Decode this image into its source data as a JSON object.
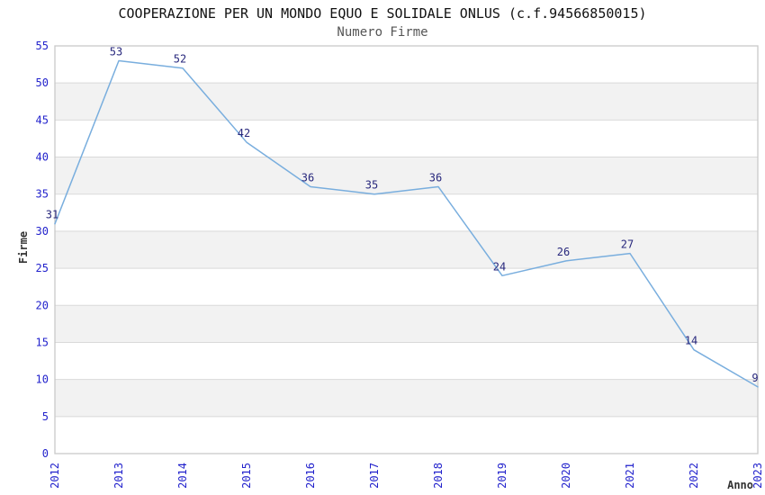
{
  "chart_data": {
    "type": "line",
    "title": "COOPERAZIONE PER UN MONDO EQUO E SOLIDALE ONLUS (c.f.94566850015)",
    "subtitle": "Numero Firme",
    "xlabel": "Anno",
    "ylabel": "Firme",
    "categories": [
      "2012",
      "2013",
      "2014",
      "2015",
      "2016",
      "2017",
      "2018",
      "2019",
      "2020",
      "2021",
      "2022",
      "2023"
    ],
    "series": [
      {
        "name": "Numero Firme",
        "values": [
          31,
          53,
          52,
          42,
          36,
          35,
          36,
          24,
          26,
          27,
          14,
          9
        ]
      }
    ],
    "ylim": [
      0,
      55
    ],
    "ytick_step": 5,
    "grid": true,
    "legend": "none",
    "point_labels_visible": true,
    "colors": {
      "line": "#79aede",
      "point_label": "#28287d",
      "tick_label": "#2222cc",
      "band": "#f2f2f2",
      "gridline": "#d9d9d9",
      "border": "#c9c9c9",
      "title": "#111111",
      "subtitle": "#555555",
      "axis_title": "#333333",
      "background": "#ffffff"
    }
  }
}
